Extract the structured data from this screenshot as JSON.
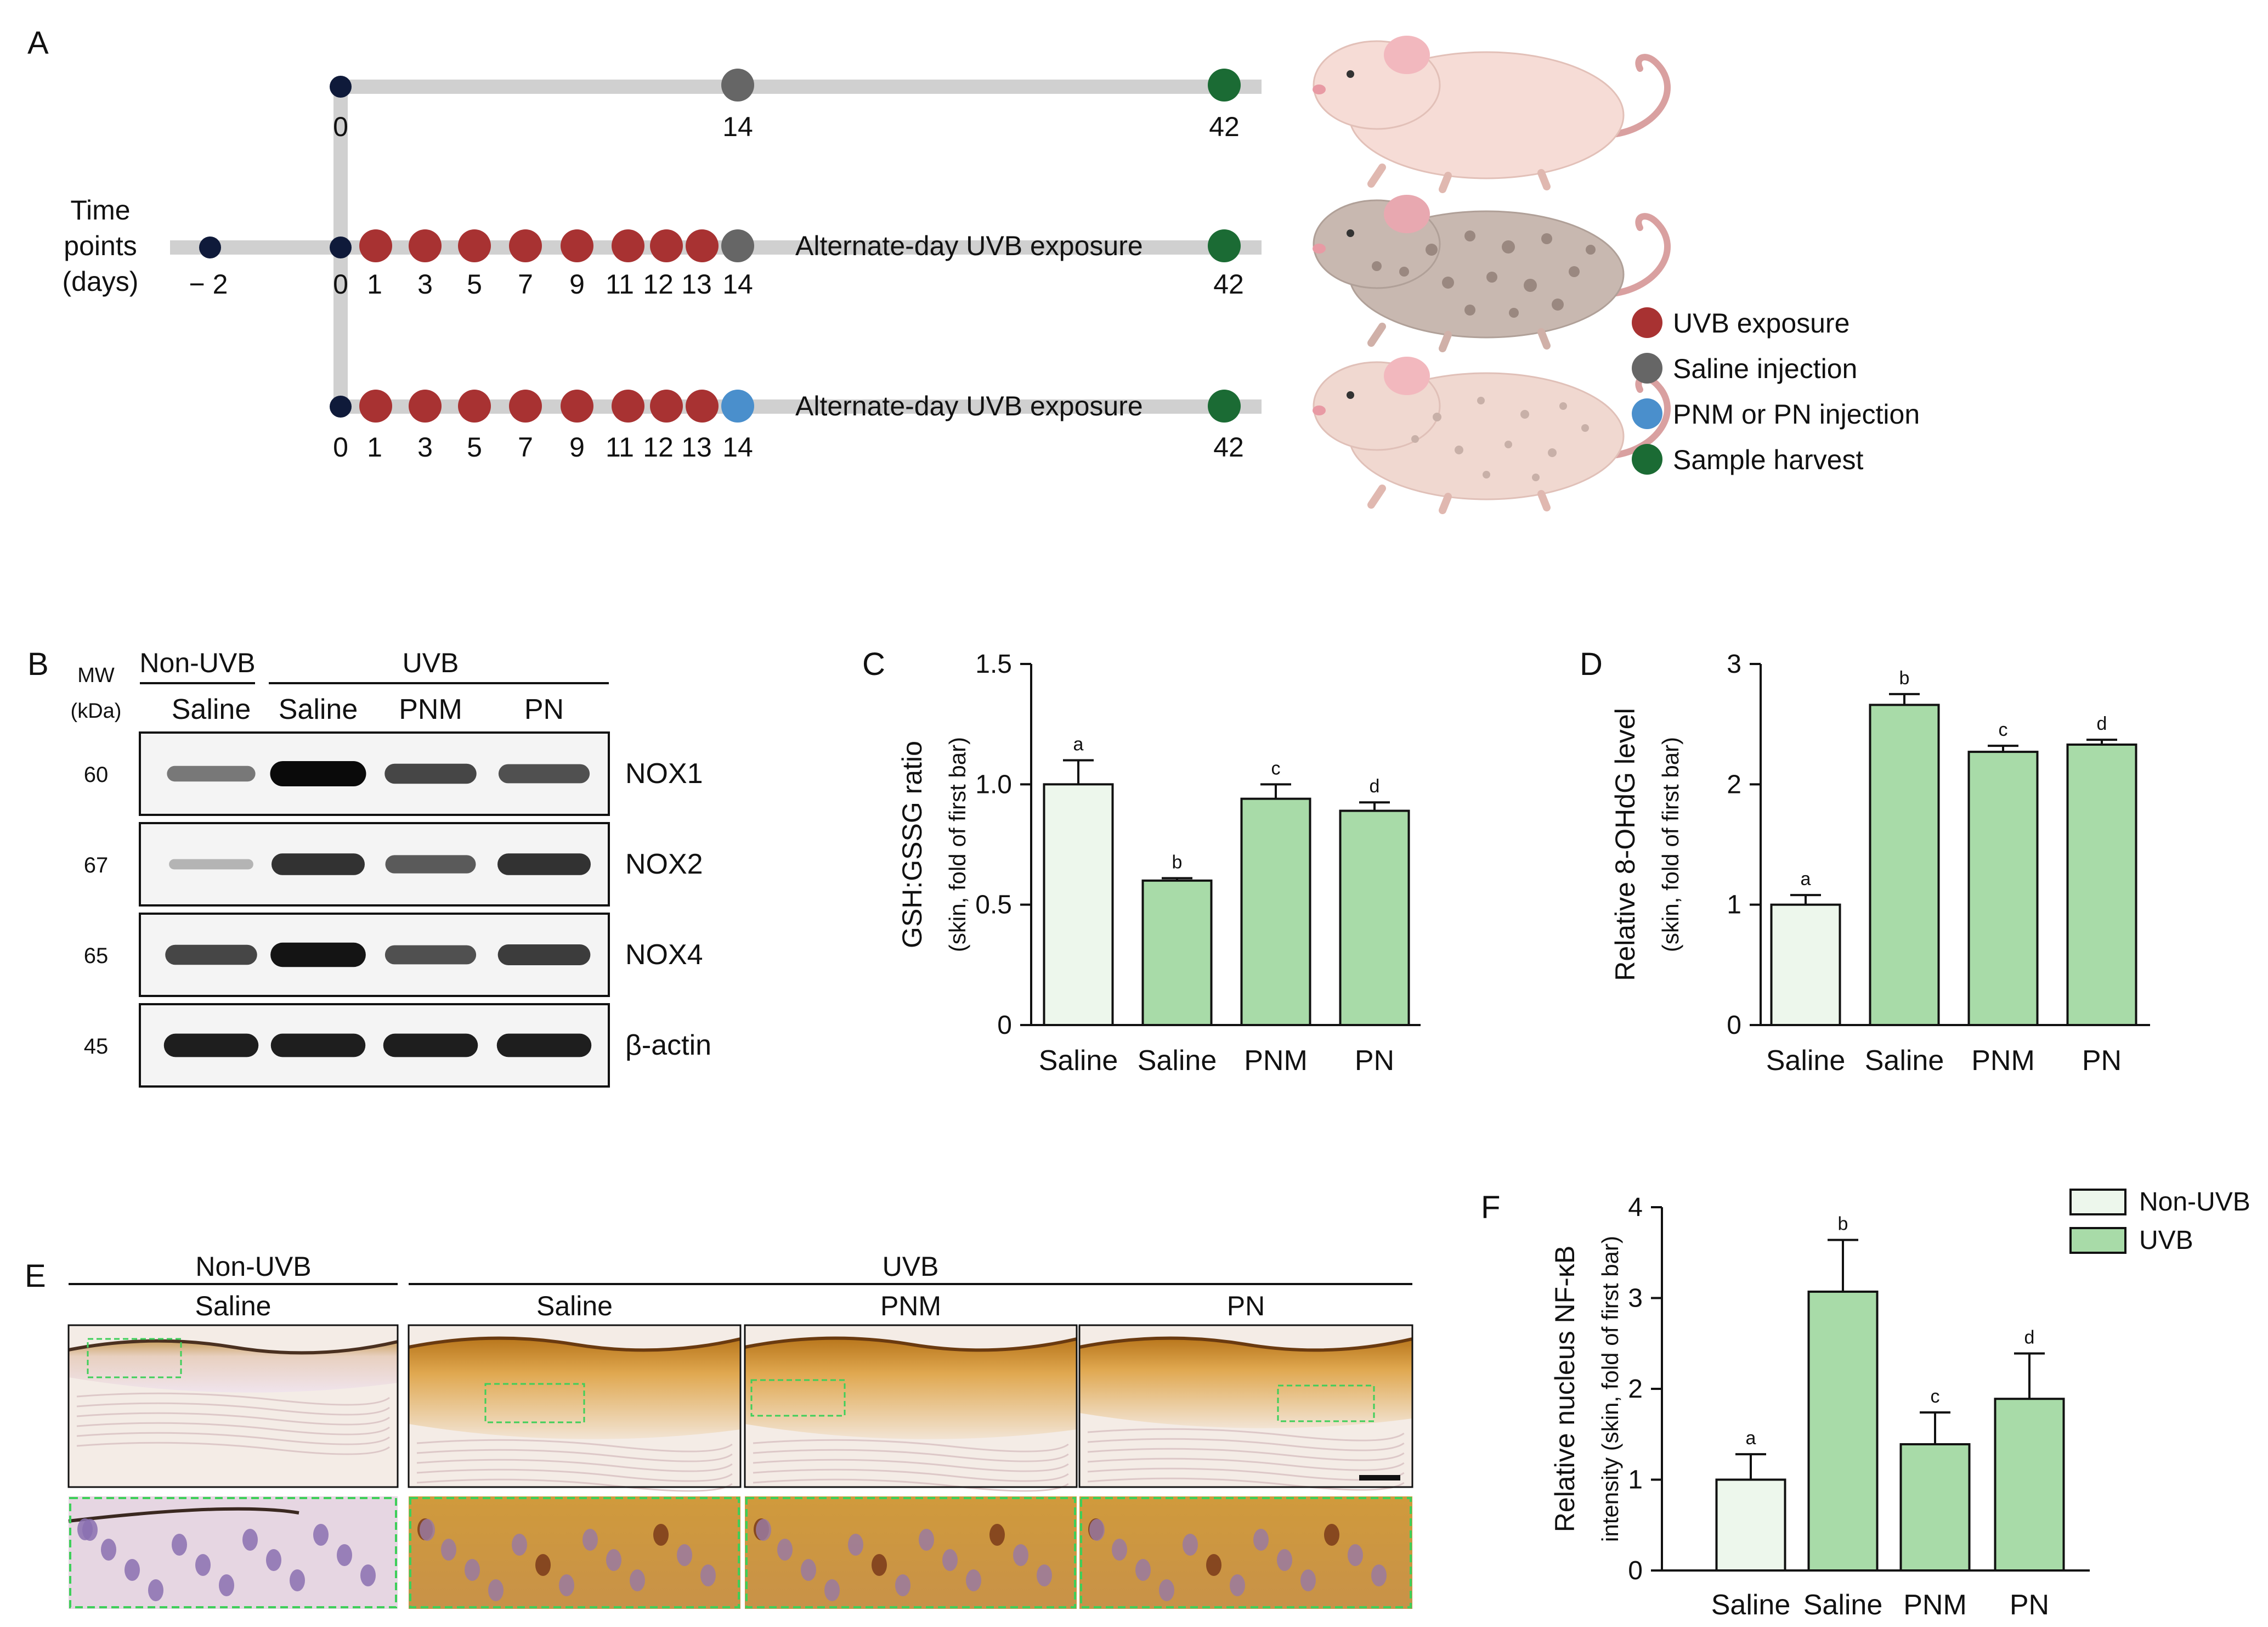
{
  "panels": {
    "A": {
      "label": "A",
      "time_axis_label": [
        "Time",
        "points",
        "(days)"
      ],
      "pre_day": "− 2",
      "row1_days": [
        "0",
        "14",
        "42"
      ],
      "uvb_days": [
        "0",
        "1",
        "3",
        "5",
        "7",
        "9",
        "11",
        "12",
        "13",
        "14",
        "42"
      ],
      "uvb_exposure_text": "Alternate-day UVB exposure",
      "legend": [
        {
          "label": "UVB exposure",
          "color": "#a83232"
        },
        {
          "label": "Saline injection",
          "color": "#666666"
        },
        {
          "label": "PNM or PN injection",
          "color": "#4a8fcc"
        },
        {
          "label": "Sample harvest",
          "color": "#1b6b34"
        }
      ],
      "dot_colors": {
        "start": "#0f1a3a",
        "uvb": "#a83232",
        "saline": "#666666",
        "pnm": "#4a8fcc",
        "harvest": "#1b6b34"
      }
    },
    "B": {
      "label": "B",
      "mw_label": [
        "MW",
        "(kDa)"
      ],
      "group_nonuvb": "Non-UVB",
      "group_uvb": "UVB",
      "lanes": [
        "Saline",
        "Saline",
        "PNM",
        "PN"
      ],
      "blots": [
        {
          "name": "NOX1",
          "mw": "60",
          "intensity": [
            0.45,
            1.0,
            0.7,
            0.65
          ]
        },
        {
          "name": "NOX2",
          "mw": "67",
          "intensity": [
            0.15,
            0.8,
            0.6,
            0.8
          ]
        },
        {
          "name": "NOX4",
          "mw": "65",
          "intensity": [
            0.7,
            0.95,
            0.65,
            0.75
          ]
        },
        {
          "name": "β-actin",
          "mw": "45",
          "intensity": [
            0.9,
            0.9,
            0.9,
            0.9
          ]
        }
      ]
    },
    "E": {
      "label": "E",
      "group_nonuvb": "Non-UVB",
      "group_uvb": "UVB",
      "columns": [
        "Saline",
        "Saline",
        "PNM",
        "PN"
      ]
    }
  },
  "chart_data": [
    {
      "id": "C",
      "type": "bar",
      "panel_label": "C",
      "categories": [
        "Saline",
        "Saline",
        "PNM",
        "PN"
      ],
      "values": [
        1.0,
        0.6,
        0.94,
        0.89
      ],
      "errors": [
        0.1,
        0.01,
        0.06,
        0.035
      ],
      "sig_letters": [
        "a",
        "b",
        "c",
        "d"
      ],
      "ylabel": "GSH:GSSG ratio",
      "ylabel_sub": "(skin, fold of first bar)",
      "ylim": [
        0,
        1.5
      ],
      "yticks": [
        "0",
        "0.5",
        "1.0",
        "1.5"
      ],
      "bar_colors": [
        "#edf7ec",
        "#a8dba8",
        "#a8dba8",
        "#a8dba8"
      ]
    },
    {
      "id": "D",
      "type": "bar",
      "panel_label": "D",
      "categories": [
        "Saline",
        "Saline",
        "PNM",
        "PN"
      ],
      "values": [
        1.0,
        2.66,
        2.27,
        2.33
      ],
      "errors": [
        0.08,
        0.09,
        0.05,
        0.04
      ],
      "sig_letters": [
        "a",
        "b",
        "c",
        "d"
      ],
      "ylabel": "Relative 8-OHdG level",
      "ylabel_sub": "(skin, fold of first bar)",
      "ylim": [
        0,
        3
      ],
      "yticks": [
        "0",
        "1",
        "2",
        "3"
      ],
      "bar_colors": [
        "#edf7ec",
        "#a8dba8",
        "#a8dba8",
        "#a8dba8"
      ]
    },
    {
      "id": "F",
      "type": "bar",
      "panel_label": "F",
      "categories": [
        "Saline",
        "Saline",
        "PNM",
        "PN"
      ],
      "values": [
        1.0,
        3.07,
        1.39,
        1.89
      ],
      "errors": [
        0.28,
        0.57,
        0.35,
        0.5
      ],
      "sig_letters": [
        "a",
        "b",
        "c",
        "d"
      ],
      "ylabel": "Relative nucleus NF-κB",
      "ylabel_sub": "intensity (skin, fold of first bar)",
      "ylim": [
        0,
        4
      ],
      "yticks": [
        "0",
        "1",
        "2",
        "3",
        "4"
      ],
      "bar_colors": [
        "#edf7ec",
        "#a8dba8",
        "#a8dba8",
        "#a8dba8"
      ],
      "legend": [
        {
          "label": "Non-UVB",
          "color": "#edf7ec"
        },
        {
          "label": "UVB",
          "color": "#a8dba8"
        }
      ]
    }
  ]
}
